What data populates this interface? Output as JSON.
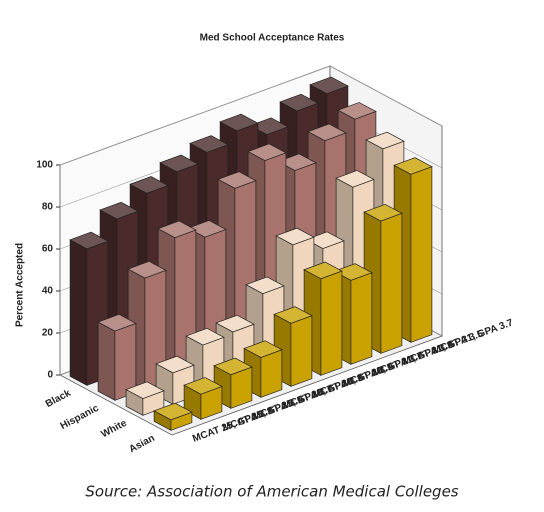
{
  "chart_data": {
    "type": "bar3d",
    "title": "Med School Acceptance Rates",
    "y_label": "Percent Accepted",
    "source": "Source: Association of American Medical Colleges",
    "categories": [
      "MCAT 25, GPA 3.3",
      "MCAT 25, GPA 3.5",
      "MCAT 25, GPA 3.7",
      "MCAT 28, GPA 3.3",
      "MCAT 28, GPA 3.5",
      "MCAT 28, GPA 3.7",
      "MCAT 31, GPA 3.3",
      "MCAT 31, GPA 3.5",
      "MCAT 31, GPA 3.7"
    ],
    "series": [
      {
        "name": "Black",
        "color": "#4a2a2a",
        "values": [
          65,
          74,
          81,
          86,
          90,
          95,
          88,
          94,
          97
        ]
      },
      {
        "name": "Hispanic",
        "color": "#a8736d",
        "values": [
          33,
          53,
          67,
          62,
          80,
          88,
          78,
          87,
          92
        ]
      },
      {
        "name": "White",
        "color": "#efd6bd",
        "values": [
          8,
          15,
          23,
          24,
          37,
          55,
          48,
          72,
          85
        ]
      },
      {
        "name": "Asian",
        "color": "#c9a100",
        "values": [
          5,
          12,
          16,
          19,
          30,
          46,
          40,
          63,
          80
        ]
      }
    ],
    "ylim": [
      0,
      100
    ],
    "yticks": [
      0,
      20,
      40,
      60,
      80,
      100
    ],
    "grid": true
  }
}
